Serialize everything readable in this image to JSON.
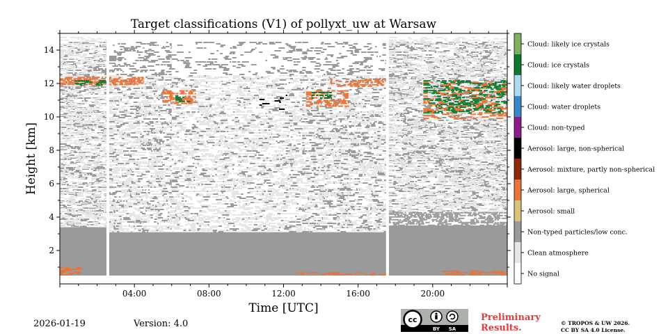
{
  "footer": {
    "date": "2026-01-19",
    "version": "Version: 4.0",
    "preliminary_line1": "Preliminary",
    "preliminary_line2": "Results.",
    "copyright_line1": "© TROPOS & UW 2026.",
    "copyright_line2": "CC BY SA 4.0 License.",
    "license_badge": {
      "cc": "cc",
      "by": "BY",
      "sa": "SA"
    }
  },
  "chart_data": {
    "type": "heatmap",
    "title": "Target classifications (V1) of pollyxt_uw at Warsaw",
    "xlabel": "Time [UTC]",
    "ylabel": "Height [km]",
    "xlim": [
      0,
      24
    ],
    "ylim": [
      0,
      15
    ],
    "xticks": [
      {
        "value": 4,
        "label": "04:00"
      },
      {
        "value": 8,
        "label": "08:00"
      },
      {
        "value": 12,
        "label": "12:00"
      },
      {
        "value": 16,
        "label": "16:00"
      },
      {
        "value": 20,
        "label": "20:00"
      }
    ],
    "yticks": [
      {
        "value": 2,
        "label": "2"
      },
      {
        "value": 4,
        "label": "4"
      },
      {
        "value": 6,
        "label": "6"
      },
      {
        "value": 8,
        "label": "8"
      },
      {
        "value": 10,
        "label": "10"
      },
      {
        "value": 12,
        "label": "12"
      },
      {
        "value": 14,
        "label": "14"
      }
    ],
    "data_gaps_hours": [
      [
        2.5,
        2.65
      ],
      [
        17.5,
        17.65
      ]
    ],
    "min_height_km": 0.5,
    "classes": [
      {
        "id": 0,
        "label": "No signal",
        "color": "#ffffff"
      },
      {
        "id": 1,
        "label": "Clean atmosphere",
        "color": "#e6e6e6"
      },
      {
        "id": 2,
        "label": "Non-typed particles/low conc.",
        "color": "#9a9a9a"
      },
      {
        "id": 3,
        "label": "Aerosol: small",
        "color": "#d8c47a"
      },
      {
        "id": 4,
        "label": "Aerosol: large, spherical",
        "color": "#e8743a"
      },
      {
        "id": 5,
        "label": "Aerosol: mixture, partly non-spherical",
        "color": "#8a2a08"
      },
      {
        "id": 6,
        "label": "Aerosol: large, non-spherical",
        "color": "#000000"
      },
      {
        "id": 7,
        "label": "Cloud: non-typed",
        "color": "#8a1f8a"
      },
      {
        "id": 8,
        "label": "Cloud: water droplets",
        "color": "#3a86c8"
      },
      {
        "id": 9,
        "label": "Cloud: likely water droplets",
        "color": "#b0d8f0"
      },
      {
        "id": 10,
        "label": "Cloud: ice crystals",
        "color": "#10782e"
      },
      {
        "id": 11,
        "label": "Cloud: likely ice crystals",
        "color": "#80b060"
      }
    ],
    "regions": [
      {
        "class": 2,
        "t": [
          0,
          2.5
        ],
        "h": [
          0.5,
          3.4
        ],
        "density": 1.0
      },
      {
        "class": 2,
        "t": [
          2.65,
          17.5
        ],
        "h": [
          0.5,
          3.1
        ],
        "density": 1.0
      },
      {
        "class": 2,
        "t": [
          17.65,
          24
        ],
        "h": [
          0.5,
          3.5
        ],
        "density": 1.0
      },
      {
        "class": 2,
        "t": [
          17.65,
          24
        ],
        "h": [
          3.5,
          4.3
        ],
        "density": 0.75
      },
      {
        "class": 2,
        "t": [
          0,
          2.5
        ],
        "h": [
          3.4,
          14.5
        ],
        "density": 0.45
      },
      {
        "class": 2,
        "t": [
          2.65,
          6
        ],
        "h": [
          3.1,
          14.5
        ],
        "density": 0.4
      },
      {
        "class": 2,
        "t": [
          6,
          13
        ],
        "h": [
          3.1,
          14.5
        ],
        "density": 0.22
      },
      {
        "class": 2,
        "t": [
          13,
          17.5
        ],
        "h": [
          3.1,
          14.5
        ],
        "density": 0.35
      },
      {
        "class": 2,
        "t": [
          17.65,
          24
        ],
        "h": [
          4.3,
          14.5
        ],
        "density": 0.45
      },
      {
        "class": 1,
        "t": [
          0,
          2.5
        ],
        "h": [
          3.4,
          14.8
        ],
        "density": 0.55
      },
      {
        "class": 1,
        "t": [
          2.65,
          17.5
        ],
        "h": [
          3.1,
          12.5
        ],
        "density": 0.5
      },
      {
        "class": 1,
        "t": [
          17.65,
          24
        ],
        "h": [
          4.3,
          14.8
        ],
        "density": 0.55
      },
      {
        "class": 4,
        "t": [
          0,
          1.2
        ],
        "h": [
          0.5,
          1.0
        ],
        "density": 0.8
      },
      {
        "class": 4,
        "t": [
          12.5,
          17.5
        ],
        "h": [
          0.5,
          0.7
        ],
        "density": 0.6
      },
      {
        "class": 4,
        "t": [
          20.5,
          24
        ],
        "h": [
          0.5,
          0.8
        ],
        "density": 0.6
      },
      {
        "class": 4,
        "t": [
          0,
          4.5
        ],
        "h": [
          11.9,
          12.4
        ],
        "density": 0.85
      },
      {
        "class": 10,
        "t": [
          0.8,
          2.5
        ],
        "h": [
          11.9,
          12.2
        ],
        "density": 0.6
      },
      {
        "class": 4,
        "t": [
          5.5,
          7.3
        ],
        "h": [
          10.8,
          11.6
        ],
        "density": 0.7
      },
      {
        "class": 10,
        "t": [
          6.2,
          7.0
        ],
        "h": [
          10.9,
          11.3
        ],
        "density": 0.6
      },
      {
        "class": 4,
        "t": [
          13.2,
          15.5
        ],
        "h": [
          10.6,
          11.6
        ],
        "density": 0.6
      },
      {
        "class": 10,
        "t": [
          13.5,
          14.6
        ],
        "h": [
          11.1,
          11.5
        ],
        "density": 0.7
      },
      {
        "class": 4,
        "t": [
          14.5,
          17.5
        ],
        "h": [
          11.8,
          12.3
        ],
        "density": 0.6
      },
      {
        "class": 10,
        "t": [
          19.5,
          24
        ],
        "h": [
          10.2,
          12.2
        ],
        "density": 0.55
      },
      {
        "class": 4,
        "t": [
          19.5,
          24
        ],
        "h": [
          9.9,
          12.2
        ],
        "density": 0.3
      },
      {
        "class": 6,
        "t": [
          10.7,
          12.2
        ],
        "h": [
          10.5,
          11.5
        ],
        "density": 0.15
      }
    ]
  }
}
